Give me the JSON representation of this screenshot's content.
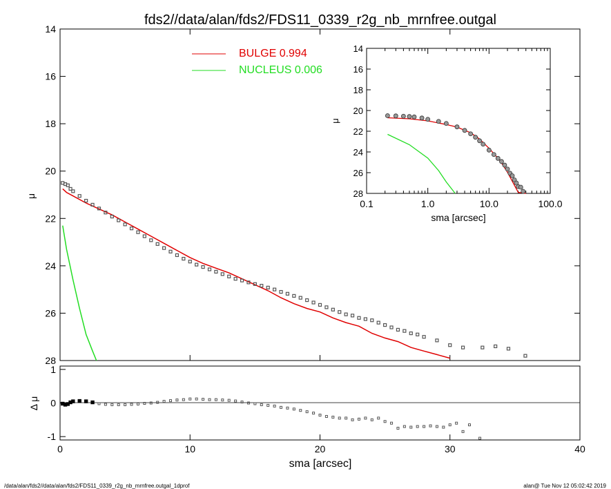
{
  "title": "fds2//data/alan/fds2/FDS11_0339_r2g_nb_mrnfree.outgal",
  "footer_left": "/data/alan/fds2//data/alan/fds2/FDS11_0339_r2g_nb_mrnfree.outgal_1dprof",
  "footer_right": "alan@  Tue Nov 12 05:02:42 2019",
  "colors": {
    "bulge": "#e00000",
    "nucleus": "#22dd22",
    "data": "#555555"
  },
  "chart_data": [
    {
      "id": "main",
      "type": "line",
      "xlabel": "",
      "ylabel": "μ",
      "xlim": [
        0,
        40
      ],
      "ylim": [
        28,
        14
      ],
      "yticks": [
        "14",
        "16",
        "18",
        "20",
        "22",
        "24",
        "26",
        "28"
      ],
      "legend": [
        {
          "label": "BULGE  0.994",
          "color": "#e00000"
        },
        {
          "label": "NUCLEUS  0.006",
          "color": "#22dd22"
        }
      ],
      "series": [
        {
          "name": "BULGE  0.994",
          "x": [
            0.2,
            0.5,
            1,
            2,
            3,
            4,
            5,
            6,
            7,
            8,
            9,
            10,
            11,
            12,
            13,
            14,
            15,
            16,
            17,
            18,
            19,
            20,
            21,
            22,
            23,
            24,
            25,
            26,
            27,
            28,
            29,
            30
          ],
          "y": [
            20.75,
            20.9,
            21.05,
            21.35,
            21.6,
            21.85,
            22.15,
            22.45,
            22.75,
            23.05,
            23.35,
            23.65,
            23.9,
            24.1,
            24.3,
            24.55,
            24.8,
            25.05,
            25.35,
            25.6,
            25.8,
            25.95,
            26.2,
            26.4,
            26.55,
            26.85,
            27.05,
            27.2,
            27.45,
            27.6,
            27.75,
            27.9
          ]
        },
        {
          "name": "NUCLEUS  0.006",
          "x": [
            0.2,
            0.5,
            1,
            1.5,
            2,
            2.5,
            2.8
          ],
          "y": [
            22.3,
            23.3,
            24.6,
            25.8,
            26.9,
            27.6,
            28.0
          ]
        },
        {
          "name": "data",
          "x": [
            0.2,
            0.4,
            0.6,
            0.8,
            1,
            1.5,
            2,
            2.5,
            3,
            3.5,
            4,
            4.5,
            5,
            5.5,
            6,
            6.5,
            7,
            7.5,
            8,
            8.5,
            9,
            9.5,
            10,
            10.5,
            11,
            11.5,
            12,
            12.5,
            13,
            13.5,
            14,
            14.5,
            15,
            15.5,
            16,
            16.5,
            17,
            17.5,
            18,
            18.5,
            19,
            19.5,
            20,
            20.5,
            21,
            21.5,
            22,
            22.5,
            23,
            23.5,
            24,
            24.5,
            25,
            25.5,
            26,
            26.5,
            27,
            27.5,
            28,
            29,
            30,
            31,
            32.5,
            33.5,
            34.5,
            35.8
          ],
          "y": [
            20.5,
            20.55,
            20.6,
            20.75,
            20.85,
            21.05,
            21.25,
            21.42,
            21.58,
            21.75,
            21.92,
            22.08,
            22.25,
            22.42,
            22.58,
            22.75,
            22.92,
            23.08,
            23.25,
            23.4,
            23.55,
            23.7,
            23.82,
            23.95,
            24.05,
            24.15,
            24.25,
            24.35,
            24.45,
            24.55,
            24.62,
            24.7,
            24.77,
            24.84,
            24.92,
            25.0,
            25.1,
            25.18,
            25.27,
            25.35,
            25.45,
            25.55,
            25.65,
            25.75,
            25.85,
            25.95,
            26.05,
            26.1,
            26.2,
            26.25,
            26.3,
            26.4,
            26.5,
            26.6,
            26.7,
            26.75,
            26.85,
            26.9,
            27.0,
            27.15,
            27.35,
            27.45,
            27.45,
            27.4,
            27.5,
            27.8
          ]
        }
      ]
    },
    {
      "id": "residual",
      "type": "scatter",
      "xlabel": "sma [arcsec]",
      "ylabel": "Δ μ",
      "xlim": [
        0,
        40
      ],
      "ylim": [
        -1.1,
        1.1
      ],
      "xticks": [
        "0",
        "10",
        "20",
        "30",
        "40"
      ],
      "yticks": [
        "1",
        "0",
        "-1"
      ],
      "x": [
        0.2,
        0.4,
        0.6,
        0.8,
        1,
        1.5,
        2,
        2.5,
        3,
        3.5,
        4,
        4.5,
        5,
        5.5,
        6,
        6.5,
        7,
        7.5,
        8,
        8.5,
        9,
        9.5,
        10,
        10.5,
        11,
        11.5,
        12,
        12.5,
        13,
        13.5,
        14,
        14.5,
        15,
        15.5,
        16,
        16.5,
        17,
        17.5,
        18,
        18.5,
        19,
        19.5,
        20,
        20.5,
        21,
        21.5,
        22,
        22.5,
        23,
        23.5,
        24,
        24.5,
        25,
        25.5,
        26,
        26.5,
        27,
        27.5,
        28,
        28.5,
        29,
        29.5,
        30,
        30.5,
        31,
        31.5,
        32.3
      ],
      "y": [
        -0.02,
        -0.05,
        -0.03,
        0.02,
        0.05,
        0.06,
        0.05,
        0.02,
        -0.02,
        -0.04,
        -0.05,
        -0.05,
        -0.05,
        -0.04,
        -0.03,
        -0.01,
        0.0,
        0.02,
        0.05,
        0.07,
        0.09,
        0.1,
        0.12,
        0.12,
        0.11,
        0.1,
        0.1,
        0.09,
        0.08,
        0.06,
        0.03,
        0.0,
        -0.02,
        -0.05,
        -0.07,
        -0.09,
        -0.13,
        -0.15,
        -0.18,
        -0.22,
        -0.26,
        -0.3,
        -0.36,
        -0.4,
        -0.42,
        -0.45,
        -0.45,
        -0.5,
        -0.48,
        -0.45,
        -0.5,
        -0.45,
        -0.55,
        -0.6,
        -0.75,
        -0.7,
        -0.72,
        -0.7,
        -0.7,
        -0.68,
        -0.7,
        -0.72,
        -0.65,
        -0.6,
        -0.85,
        -0.65,
        -1.05
      ]
    },
    {
      "id": "inset",
      "type": "line",
      "xlabel": "sma [arcsec]",
      "ylabel": "μ",
      "xscale": "log",
      "xlim": [
        0.1,
        100
      ],
      "ylim": [
        28,
        14
      ],
      "xticks": [
        "0.1",
        "1.0",
        "10.0",
        "100.0"
      ],
      "yticks": [
        "14",
        "16",
        "18",
        "20",
        "22",
        "24",
        "26",
        "28"
      ],
      "series": [
        {
          "name": "BULGE  0.994",
          "x": [
            0.22,
            0.5,
            1,
            2,
            3,
            5,
            7,
            10,
            15,
            20,
            30,
            40
          ],
          "y": [
            20.7,
            20.8,
            21.0,
            21.35,
            21.6,
            22.15,
            22.75,
            23.65,
            24.8,
            25.95,
            27.9,
            28.0
          ]
        },
        {
          "name": "NUCLEUS  0.006",
          "x": [
            0.22,
            0.5,
            1,
            1.5,
            2,
            2.8
          ],
          "y": [
            22.3,
            23.3,
            24.6,
            25.8,
            26.9,
            28.0
          ]
        },
        {
          "name": "data",
          "x": [
            0.22,
            0.3,
            0.4,
            0.5,
            0.6,
            0.8,
            1,
            1.5,
            2,
            3,
            4,
            5,
            6,
            7,
            8,
            10,
            12,
            14,
            16,
            18,
            20,
            22,
            24,
            26,
            28,
            30,
            33,
            36
          ],
          "y": [
            20.5,
            20.52,
            20.55,
            20.58,
            20.62,
            20.72,
            20.85,
            21.05,
            21.25,
            21.58,
            21.92,
            22.25,
            22.58,
            22.92,
            23.25,
            23.82,
            24.25,
            24.62,
            24.92,
            25.27,
            25.65,
            26.05,
            26.3,
            26.7,
            27.0,
            27.35,
            27.4,
            27.8
          ]
        }
      ]
    }
  ]
}
